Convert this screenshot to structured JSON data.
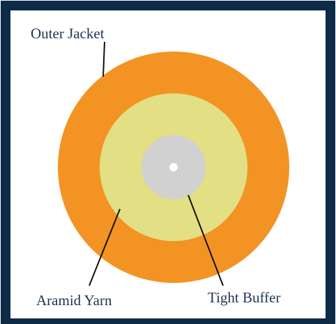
{
  "labels": {
    "outer_jacket": "Outer Jacket",
    "aramid_yarn": "Aramid Yarn",
    "tight_buffer": "Tight Buffer"
  }
}
